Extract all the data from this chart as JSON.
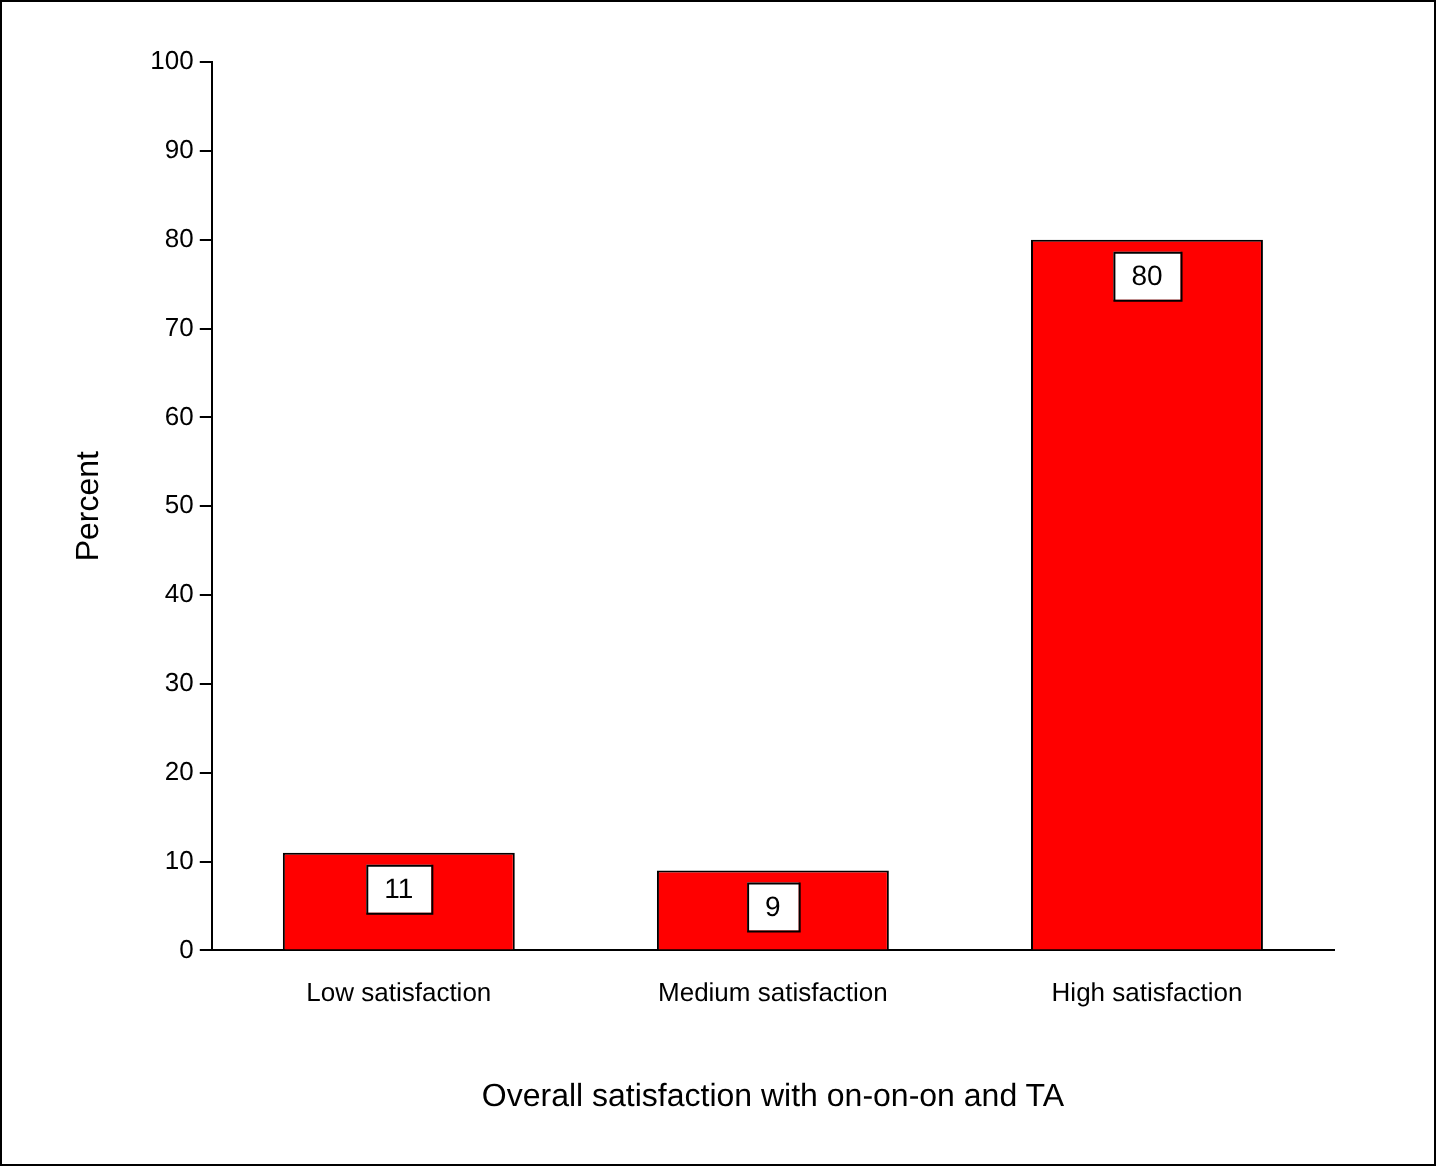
{
  "chart_data": {
    "type": "bar",
    "xlabel": "Overall satisfaction with on-on-on and TA",
    "ylabel": "Percent",
    "categories": [
      "Low satisfaction",
      "Medium satisfaction",
      "High satisfaction"
    ],
    "values": [
      11,
      9,
      80
    ],
    "color": "#ff0000",
    "ylim": [
      0,
      100
    ],
    "yticks": [
      0,
      10,
      20,
      30,
      40,
      50,
      60,
      70,
      80,
      90,
      100
    ],
    "grid": false,
    "legend": false,
    "data_labels": true
  }
}
